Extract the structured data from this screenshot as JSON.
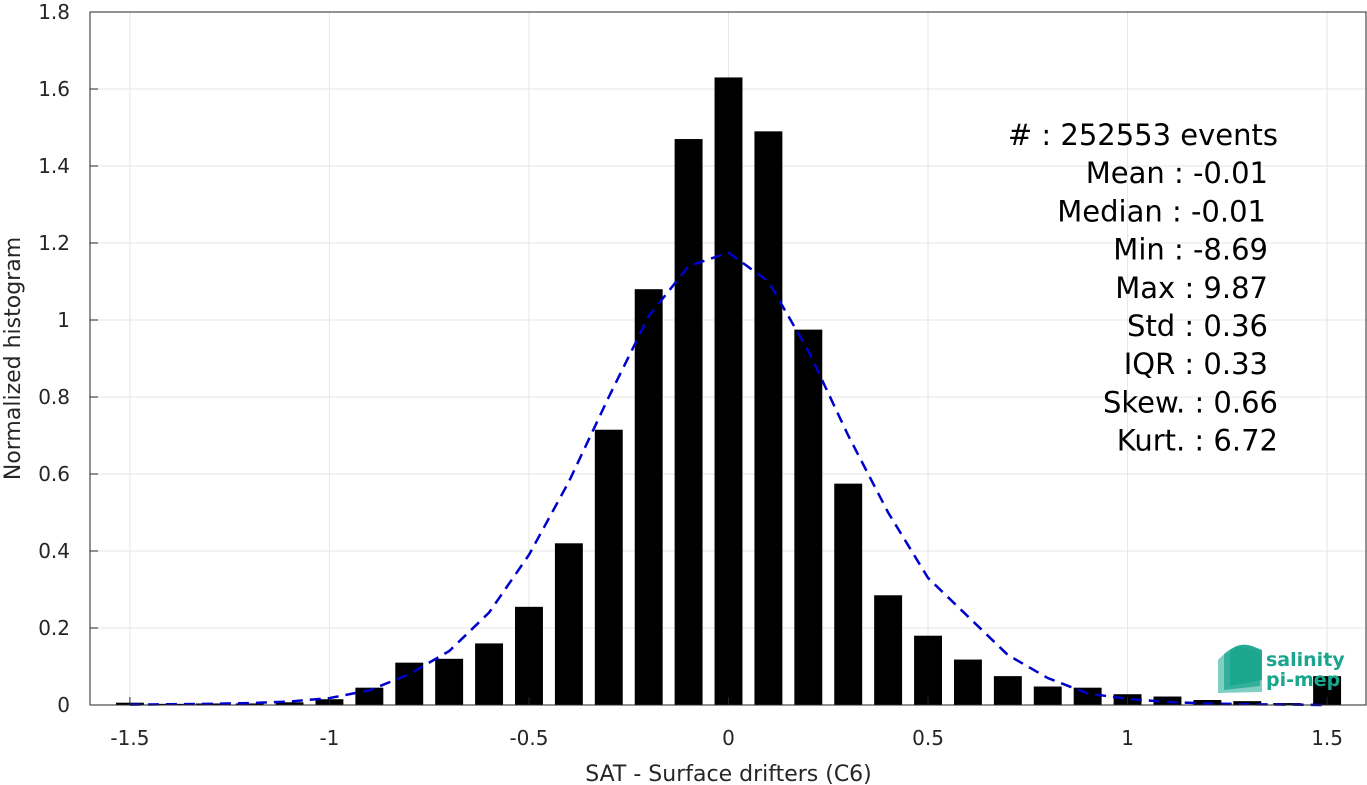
{
  "chart_data": {
    "type": "bar",
    "xlabel": "SAT - Surface drifters (C6)",
    "ylabel": "Normalized histogram",
    "xlim": [
      -1.6,
      1.6
    ],
    "ylim": [
      0,
      1.8
    ],
    "xticks": [
      -1.5,
      -1,
      -0.5,
      0,
      0.5,
      1,
      1.5
    ],
    "xtick_labels": [
      "-1.5",
      "-1",
      "-0.5",
      "0",
      "0.5",
      "1",
      "1.5"
    ],
    "yticks": [
      0,
      0.2,
      0.4,
      0.6,
      0.8,
      1,
      1.2,
      1.4,
      1.6,
      1.8
    ],
    "ytick_labels": [
      "0",
      "0.2",
      "0.4",
      "0.6",
      "0.8",
      "1",
      "1.2",
      "1.4",
      "1.6",
      "1.8"
    ],
    "grid": true,
    "bar_color": "#000000",
    "bar_width": 0.07,
    "bars": {
      "x": [
        -1.5,
        -1.4,
        -1.3,
        -1.2,
        -1.1,
        -1.0,
        -0.9,
        -0.8,
        -0.7,
        -0.6,
        -0.5,
        -0.4,
        -0.3,
        -0.2,
        -0.1,
        0.0,
        0.1,
        0.2,
        0.3,
        0.4,
        0.5,
        0.6,
        0.7,
        0.8,
        0.9,
        1.0,
        1.1,
        1.2,
        1.3,
        1.4,
        1.5
      ],
      "values": [
        0.006,
        0.003,
        0.004,
        0.004,
        0.007,
        0.015,
        0.045,
        0.11,
        0.12,
        0.16,
        0.255,
        0.42,
        0.715,
        1.08,
        1.47,
        1.63,
        1.49,
        0.975,
        0.575,
        0.285,
        0.18,
        0.118,
        0.075,
        0.048,
        0.045,
        0.028,
        0.022,
        0.013,
        0.01,
        0.005,
        0.075
      ]
    },
    "fit_curve": {
      "style": "dashed",
      "color": "#0000cc",
      "x": [
        -1.5,
        -1.4,
        -1.3,
        -1.2,
        -1.1,
        -1.0,
        -0.9,
        -0.8,
        -0.7,
        -0.6,
        -0.5,
        -0.4,
        -0.3,
        -0.2,
        -0.1,
        0.0,
        0.1,
        0.2,
        0.3,
        0.4,
        0.5,
        0.6,
        0.7,
        0.8,
        0.9,
        1.0,
        1.1,
        1.2,
        1.3,
        1.4,
        1.5
      ],
      "y": [
        0.001,
        0.002,
        0.003,
        0.005,
        0.009,
        0.018,
        0.038,
        0.08,
        0.14,
        0.24,
        0.39,
        0.58,
        0.8,
        1.01,
        1.14,
        1.175,
        1.1,
        0.92,
        0.7,
        0.5,
        0.33,
        0.23,
        0.13,
        0.07,
        0.03,
        0.016,
        0.008,
        0.004,
        0.002,
        0.001,
        0.0
      ]
    },
    "annotations": [
      "#  : 252553 events",
      "Mean : -0.01",
      "Median : -0.01",
      "Min : -8.69",
      "Max : 9.87",
      "Std : 0.36",
      "IQR : 0.33",
      "Skew. : 0.66",
      "Kurt. : 6.72"
    ]
  },
  "logo": {
    "line1": "salinity",
    "line2": "pi-mep",
    "color": "#1aa58f"
  }
}
